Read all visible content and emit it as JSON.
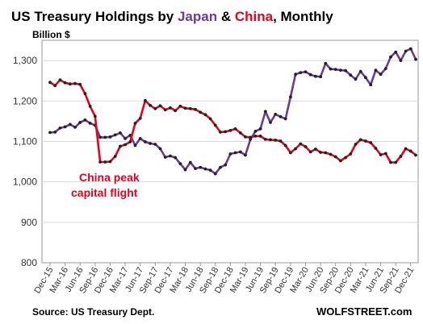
{
  "title": {
    "part1": "US Treasury Holdings by ",
    "japan": "Japan",
    "amp": " & ",
    "china": "China",
    "part2": ", Monthly"
  },
  "colors": {
    "japan": "#6a3c96",
    "china": "#e8001c",
    "grid": "#d9d9d9",
    "axis": "#999999"
  },
  "annotation": {
    "line1": "China peak",
    "line2": "capital flight"
  },
  "source": "Source: US Treasury Dept.",
  "brand": "WOLFSTREET.com",
  "chart_data": {
    "type": "line",
    "ylabel": "Billion $",
    "ylim": [
      800,
      1350
    ],
    "yticks": [
      800,
      900,
      "1,000",
      "1,100",
      "1,200",
      "1,300"
    ],
    "x_tick_labels": [
      "Dec-15",
      "Mar-16",
      "Jun-16",
      "Sep-16",
      "Dec-16",
      "Mar-17",
      "Jun-17",
      "Sep-17",
      "Dec-17",
      "Mar-18",
      "Jun-18",
      "Sep-18",
      "Dec-18",
      "Mar-19",
      "Jun-19",
      "Sep-19",
      "Dec-19",
      "Mar-20",
      "Jun-20",
      "Sep-20",
      "Dec-20",
      "Mar-21",
      "Jun-21",
      "Sep-21",
      "Dec-21"
    ],
    "grid": true,
    "series": [
      {
        "name": "Japan",
        "values": [
          1122,
          1123,
          1133,
          1136,
          1142,
          1135,
          1147,
          1153,
          1145,
          1140,
          1110,
          1110,
          1111,
          1116,
          1121,
          1107,
          1115,
          1090,
          1107,
          1099,
          1095,
          1093,
          1082,
          1061,
          1064,
          1060,
          1045,
          1030,
          1048,
          1033,
          1036,
          1032,
          1029,
          1020,
          1036,
          1042,
          1069,
          1072,
          1074,
          1066,
          1105,
          1125,
          1131,
          1174,
          1147,
          1167,
          1161,
          1156,
          1210,
          1266,
          1270,
          1272,
          1265,
          1261,
          1260,
          1293,
          1279,
          1278,
          1276,
          1275,
          1264,
          1254,
          1273,
          1258,
          1240,
          1276,
          1266,
          1280,
          1309,
          1321,
          1300,
          1323,
          1329,
          1303
        ]
      },
      {
        "name": "China",
        "values": [
          1246,
          1238,
          1252,
          1245,
          1242,
          1243,
          1241,
          1218,
          1187,
          1162,
          1049,
          1049,
          1050,
          1063,
          1088,
          1092,
          1099,
          1145,
          1157,
          1201,
          1189,
          1181,
          1188,
          1178,
          1183,
          1176,
          1187,
          1182,
          1181,
          1179,
          1172,
          1166,
          1156,
          1140,
          1123,
          1124,
          1127,
          1131,
          1121,
          1111,
          1110,
          1113,
          1113,
          1105,
          1104,
          1103,
          1101,
          1090,
          1072,
          1082,
          1094,
          1087,
          1074,
          1081,
          1073,
          1072,
          1068,
          1062,
          1052,
          1060,
          1069,
          1093,
          1104,
          1101,
          1097,
          1083,
          1067,
          1070,
          1048,
          1048,
          1063,
          1082,
          1076,
          1066
        ]
      }
    ]
  }
}
